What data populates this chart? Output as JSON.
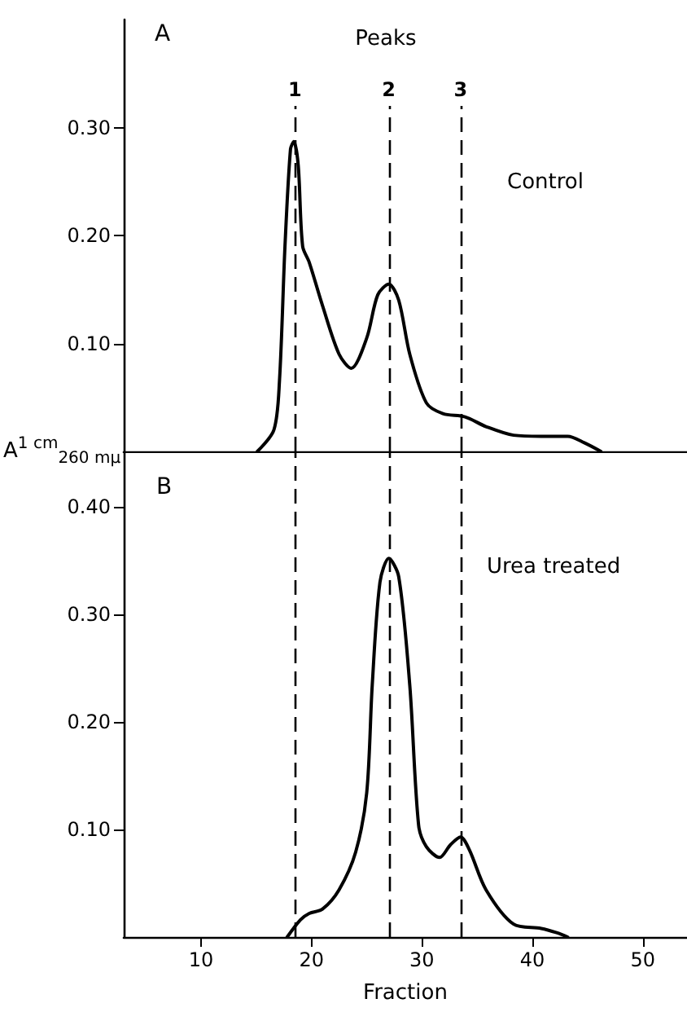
{
  "chart_data": [
    {
      "type": "line",
      "title": "A",
      "ylabel": "A$^{1 cm}$$_{260 mμ}$",
      "annotations": [
        "Peaks",
        "Control",
        "1",
        "2",
        "3"
      ],
      "marker": "none",
      "line_style": "solid",
      "tick_labels": "y",
      "xlim": [
        3,
        54
      ],
      "xticks": [
        10,
        20,
        30,
        40,
        50
      ],
      "ylim": [
        0,
        0.4
      ],
      "yticks": [
        {
          "value": 0.1,
          "label": "0.10"
        },
        {
          "value": 0.2,
          "label": "0.20"
        },
        {
          "value": 0.3,
          "label": "0.30"
        }
      ],
      "x": [
        15.1,
        16.6,
        17.1,
        17.6,
        18.1,
        18.4,
        18.8,
        19.2,
        19.8,
        21.0,
        22.5,
        23.6,
        25.0,
        26.0,
        27.0,
        27.9,
        28.9,
        30.4,
        31.9,
        33.9,
        35.8,
        38.3,
        40.8,
        43.2,
        44.7,
        46.2
      ],
      "series": [
        {
          "color": "#000000",
          "values": [
            0,
            0.02,
            0.065,
            0.19,
            0.28,
            0.287,
            0.265,
            0.19,
            0.175,
            0.135,
            0.09,
            0.077,
            0.105,
            0.145,
            0.155,
            0.14,
            0.09,
            0.045,
            0.035,
            0.032,
            0.023,
            0.015,
            0.014,
            0.014,
            0.008,
            0
          ]
        }
      ],
      "ref_lines": [
        {
          "axis": "x",
          "value": 18.5
        },
        {
          "axis": "x",
          "value": 27
        },
        {
          "axis": "x",
          "value": 33.5
        }
      ]
    },
    {
      "type": "line",
      "title": "B",
      "xlabel": "Fraction",
      "annotations": [
        "Urea treated"
      ],
      "marker": "none",
      "line_style": "solid",
      "xlim": [
        3,
        54
      ],
      "xticks": [
        10,
        20,
        30,
        40,
        50
      ],
      "ylim": [
        0,
        0.45
      ],
      "yticks": [
        {
          "value": 0.1,
          "label": "0.10"
        },
        {
          "value": 0.2,
          "label": "0.20"
        },
        {
          "value": 0.3,
          "label": "0.30"
        },
        {
          "value": 0.4,
          "label": "0.40"
        }
      ],
      "x": [
        17.8,
        19.0,
        19.8,
        21.0,
        22.5,
        24.0,
        25.0,
        25.5,
        26.2,
        27.0,
        27.9,
        28.9,
        29.7,
        30.4,
        31.6,
        32.6,
        33.5,
        34.3,
        35.8,
        38.3,
        40.8,
        42.2,
        43.2
      ],
      "series": [
        {
          "color": "#000000",
          "values": [
            0,
            0.016,
            0.022,
            0.026,
            0.044,
            0.079,
            0.134,
            0.234,
            0.33,
            0.352,
            0.335,
            0.234,
            0.104,
            0.084,
            0.074,
            0.086,
            0.093,
            0.081,
            0.044,
            0.012,
            0.008,
            0.004,
            0
          ]
        }
      ],
      "ref_lines": [
        {
          "axis": "x",
          "value": 18.5
        },
        {
          "axis": "x",
          "value": 27
        },
        {
          "axis": "x",
          "value": 33.5
        }
      ]
    }
  ]
}
